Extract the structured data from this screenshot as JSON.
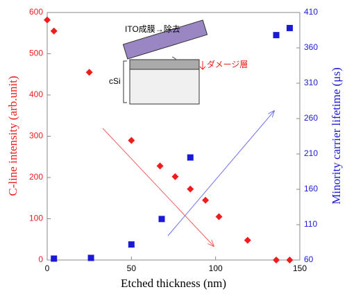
{
  "chart_data": {
    "type": "scatter",
    "xlabel": "Etched thickness (nm)",
    "ylabel": "C-line intensity (arb.unit)",
    "y2label": "Minority carrier lifetime (μs)",
    "xlim": [
      0,
      150
    ],
    "xticks": [
      0,
      50,
      100,
      150
    ],
    "ylim": [
      0,
      600
    ],
    "yticks": [
      0,
      100,
      200,
      300,
      400,
      500,
      600
    ],
    "y2lim": [
      60,
      410
    ],
    "y2ticks": [
      60,
      110,
      160,
      210,
      260,
      310,
      360,
      410
    ],
    "series": [
      {
        "name": "C-line intensity",
        "color": "#ee1c1c",
        "marker": "diamond",
        "x": [
          0,
          4,
          25,
          50,
          67,
          76,
          85,
          94,
          102,
          119,
          136,
          144
        ],
        "values": [
          582,
          555,
          455,
          290,
          228,
          202,
          172,
          145,
          105,
          48,
          0,
          0
        ]
      },
      {
        "name": "Minority carrier lifetime",
        "color": "#1a1ad6",
        "marker": "square",
        "axis": "y2",
        "x": [
          4,
          26,
          50,
          68,
          85,
          136,
          144
        ],
        "values": [
          62,
          63,
          82,
          118,
          205,
          378,
          388
        ]
      }
    ],
    "annotations": [
      "ITO成膜→除去",
      "ダメージ層",
      "cSi"
    ]
  }
}
